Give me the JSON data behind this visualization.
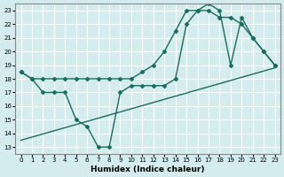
{
  "xlabel": "Humidex (Indice chaleur)",
  "bg_color": "#d4ecee",
  "grid_color": "#ffffff",
  "line_color": "#1a6b5e",
  "xlim": [
    -0.5,
    23.5
  ],
  "ylim": [
    12.5,
    23.5
  ],
  "xticks": [
    0,
    1,
    2,
    3,
    4,
    5,
    6,
    7,
    8,
    9,
    10,
    11,
    12,
    13,
    14,
    15,
    16,
    17,
    18,
    19,
    20,
    21,
    22,
    23
  ],
  "yticks": [
    13,
    14,
    15,
    16,
    17,
    18,
    19,
    20,
    21,
    22,
    23
  ],
  "line1_x": [
    0,
    1,
    2,
    3,
    4,
    5,
    6,
    7,
    8,
    9,
    10,
    11,
    12,
    13,
    14,
    15,
    16,
    17,
    18,
    19,
    20,
    21,
    22,
    23
  ],
  "line1_y": [
    18.5,
    18.0,
    18.0,
    18.0,
    18.0,
    18.0,
    18.0,
    18.0,
    18.0,
    18.0,
    18.0,
    18.5,
    19.0,
    20.0,
    21.5,
    23.0,
    23.0,
    23.5,
    23.0,
    19.0,
    22.5,
    21.0,
    20.0,
    19.0
  ],
  "line2_x": [
    0,
    1,
    2,
    3,
    4,
    5,
    6,
    7,
    8,
    9,
    10,
    11,
    12,
    13,
    14,
    15,
    16,
    17,
    18,
    19,
    20,
    21,
    22,
    23
  ],
  "line2_y": [
    18.5,
    18.0,
    17.0,
    17.0,
    17.0,
    15.0,
    14.5,
    13.0,
    13.0,
    17.0,
    17.5,
    17.5,
    17.5,
    17.5,
    18.0,
    22.0,
    23.0,
    23.0,
    22.5,
    22.5,
    22.0,
    21.0,
    20.0,
    19.0
  ],
  "line3_x": [
    0,
    23
  ],
  "line3_y": [
    13.5,
    18.8
  ]
}
